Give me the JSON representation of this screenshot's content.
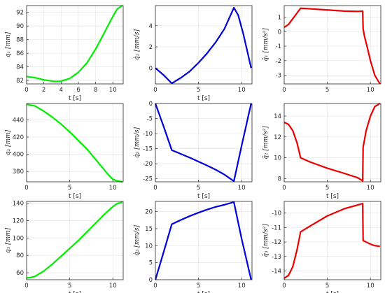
{
  "chart_data": [
    {
      "type": "line",
      "color": "#00ee00",
      "xlabel": "t [s]",
      "ylabel": "q₁ [mm]",
      "xlim": [
        0,
        11.2
      ],
      "ylim": [
        81.5,
        93
      ],
      "xticks": [
        "0",
        "2",
        "4",
        "6",
        "8",
        "10"
      ],
      "xtick_values": [
        0,
        2,
        4,
        6,
        8,
        10
      ],
      "yticks": [
        "82",
        "84",
        "86",
        "88",
        "90",
        "92"
      ],
      "ytick_values": [
        82,
        84,
        86,
        88,
        90,
        92
      ],
      "x": [
        0,
        1,
        2,
        3,
        3.4,
        4,
        5,
        6,
        7,
        8,
        9,
        10,
        10.5,
        11.1
      ],
      "y": [
        82.6,
        82.4,
        82.1,
        81.9,
        81.85,
        81.9,
        82.3,
        83.2,
        84.6,
        86.6,
        89.0,
        91.4,
        92.5,
        93.0
      ]
    },
    {
      "type": "line",
      "color": "#0000dd",
      "xlabel": "t [s]",
      "ylabel": "q̇₁ [mm/s]",
      "xlim": [
        0,
        11.2
      ],
      "ylim": [
        -1.5,
        5.9
      ],
      "xticks": [
        "0",
        "5",
        "10"
      ],
      "xtick_values": [
        0,
        5,
        10
      ],
      "yticks": [
        "0",
        "2",
        "4"
      ],
      "ytick_values": [
        0,
        2,
        4
      ],
      "x": [
        0,
        1,
        1.9,
        3,
        4,
        5,
        6,
        7,
        8,
        9.1,
        9.6,
        10.2,
        11.1
      ],
      "y": [
        0,
        -0.7,
        -1.45,
        -0.9,
        -0.3,
        0.5,
        1.4,
        2.45,
        3.7,
        5.7,
        5.0,
        3.2,
        0
      ]
    },
    {
      "type": "line",
      "color": "#ee0000",
      "xlabel": "",
      "ylabel": "q̈₁ [mm/s²]",
      "xlim": [
        0,
        11.2
      ],
      "ylim": [
        -3.6,
        1.8
      ],
      "xticks": [
        "0",
        "5",
        "10"
      ],
      "xtick_values": [
        0,
        5,
        10
      ],
      "yticks": [
        "1",
        "0",
        "-1",
        "-2",
        "-3"
      ],
      "ytick_values": [
        1,
        0,
        -1,
        -2,
        -3
      ],
      "x": [
        0,
        0.5,
        1,
        1.5,
        1.9,
        3,
        5,
        7,
        8.5,
        9.1,
        9.15,
        9.3,
        9.6,
        10,
        10.5,
        11.1
      ],
      "y": [
        0.3,
        0.5,
        0.9,
        1.3,
        1.62,
        1.58,
        1.5,
        1.42,
        1.4,
        1.42,
        0.2,
        -0.3,
        -1.0,
        -2.0,
        -3.0,
        -3.6
      ]
    },
    {
      "type": "line",
      "color": "#00ee00",
      "xlabel": "t [s]",
      "ylabel": "q₂ [mm]",
      "xlim": [
        0,
        11.2
      ],
      "ylim": [
        368,
        459
      ],
      "xticks": [
        "0",
        "5",
        "10"
      ],
      "xtick_values": [
        0,
        5,
        10
      ],
      "yticks": [
        "440",
        "420",
        "400",
        "380"
      ],
      "ytick_values": [
        440,
        420,
        400,
        380
      ],
      "x": [
        0,
        1,
        2,
        3,
        4,
        5,
        6,
        7,
        8,
        9,
        9.5,
        10,
        10.5,
        11.1
      ],
      "y": [
        458,
        456,
        450,
        443,
        435,
        426,
        416,
        406,
        394,
        382,
        376,
        371,
        369,
        368
      ]
    },
    {
      "type": "line",
      "color": "#0000dd",
      "xlabel": "t [s]",
      "ylabel": "q̇₂ [mm/s]",
      "xlim": [
        0,
        11.2
      ],
      "ylim": [
        -26,
        0
      ],
      "xticks": [
        "0",
        "5",
        "10"
      ],
      "xtick_values": [
        0,
        5,
        10
      ],
      "yticks": [
        "0",
        "-5",
        "-10",
        "-15",
        "-20",
        "-25"
      ],
      "ytick_values": [
        0,
        -5,
        -10,
        -15,
        -20,
        -25
      ],
      "x": [
        0,
        1,
        1.9,
        3,
        4,
        5,
        6,
        7,
        8,
        9.1,
        10,
        11.1
      ],
      "y": [
        0,
        -8,
        -15.5,
        -16.8,
        -18.0,
        -19.3,
        -20.6,
        -22.0,
        -23.6,
        -25.8,
        -14,
        0
      ]
    },
    {
      "type": "line",
      "color": "#ee0000",
      "xlabel": "t [s]",
      "ylabel": "q̈₂ [mm/s²]",
      "xlim": [
        0,
        11.2
      ],
      "ylim": [
        7.7,
        15.2
      ],
      "xticks": [
        "0",
        "5",
        "10"
      ],
      "xtick_values": [
        0,
        5,
        10
      ],
      "yticks": [
        "14",
        "12",
        "10",
        "8"
      ],
      "ytick_values": [
        14,
        12,
        10,
        8
      ],
      "x": [
        0,
        0.5,
        1,
        1.5,
        1.9,
        3,
        5,
        7,
        8.5,
        9.1,
        9.15,
        9.5,
        10,
        10.5,
        11.1
      ],
      "y": [
        13.4,
        13.2,
        12.6,
        11.4,
        10.0,
        9.6,
        9.0,
        8.5,
        8.1,
        7.8,
        11.0,
        12.6,
        14.0,
        14.9,
        15.2
      ]
    },
    {
      "type": "line",
      "color": "#00ee00",
      "xlabel": "t [s]",
      "ylabel": "q₃ [mm]",
      "xlim": [
        0,
        11.2
      ],
      "ylim": [
        52,
        142
      ],
      "xticks": [
        "0",
        "5",
        "10"
      ],
      "xtick_values": [
        0,
        5,
        10
      ],
      "yticks": [
        "140",
        "120",
        "100",
        "80",
        "60"
      ],
      "ytick_values": [
        140,
        120,
        100,
        80,
        60
      ],
      "x": [
        0,
        0.5,
        1,
        2,
        3,
        4,
        5,
        6,
        7,
        8,
        9,
        10,
        10.5,
        11.1
      ],
      "y": [
        54,
        54.5,
        56,
        62,
        70,
        79,
        88,
        97,
        107,
        117,
        127,
        136,
        139.5,
        141
      ]
    },
    {
      "type": "line",
      "color": "#0000dd",
      "xlabel": "t [s]",
      "ylabel": "q̇₃ [mm/s]",
      "xlim": [
        0,
        11.2
      ],
      "ylim": [
        0,
        23
      ],
      "xticks": [
        "0",
        "5",
        "10"
      ],
      "xtick_values": [
        0,
        5,
        10
      ],
      "yticks": [
        "0",
        "5",
        "10",
        "15",
        "20"
      ],
      "ytick_values": [
        0,
        5,
        10,
        15,
        20
      ],
      "x": [
        0,
        1,
        1.9,
        3,
        4,
        5,
        6,
        7,
        8,
        9.1,
        10,
        11.1
      ],
      "y": [
        0,
        8.5,
        16.3,
        17.6,
        18.7,
        19.7,
        20.6,
        21.4,
        22.0,
        22.8,
        12,
        0
      ]
    },
    {
      "type": "line",
      "color": "#ee0000",
      "xlabel": "t [s]",
      "ylabel": "q̈₃ [mm/s²]",
      "xlim": [
        0,
        11.2
      ],
      "ylim": [
        -14.6,
        -9.2
      ],
      "xticks": [
        "0",
        "5",
        "10"
      ],
      "xtick_values": [
        0,
        5,
        10
      ],
      "yticks": [
        "-10",
        "-11",
        "-12",
        "-13",
        "-14"
      ],
      "ytick_values": [
        -10,
        -11,
        -12,
        -13,
        -14
      ],
      "x": [
        0,
        0.5,
        1,
        1.5,
        1.9,
        3,
        5,
        7,
        8.5,
        9.1,
        9.15,
        9.5,
        10,
        10.5,
        11.1
      ],
      "y": [
        -14.5,
        -14.3,
        -13.7,
        -12.5,
        -11.3,
        -10.9,
        -10.2,
        -9.7,
        -9.45,
        -9.35,
        -11.9,
        -12.0,
        -12.15,
        -12.25,
        -12.3
      ]
    }
  ]
}
